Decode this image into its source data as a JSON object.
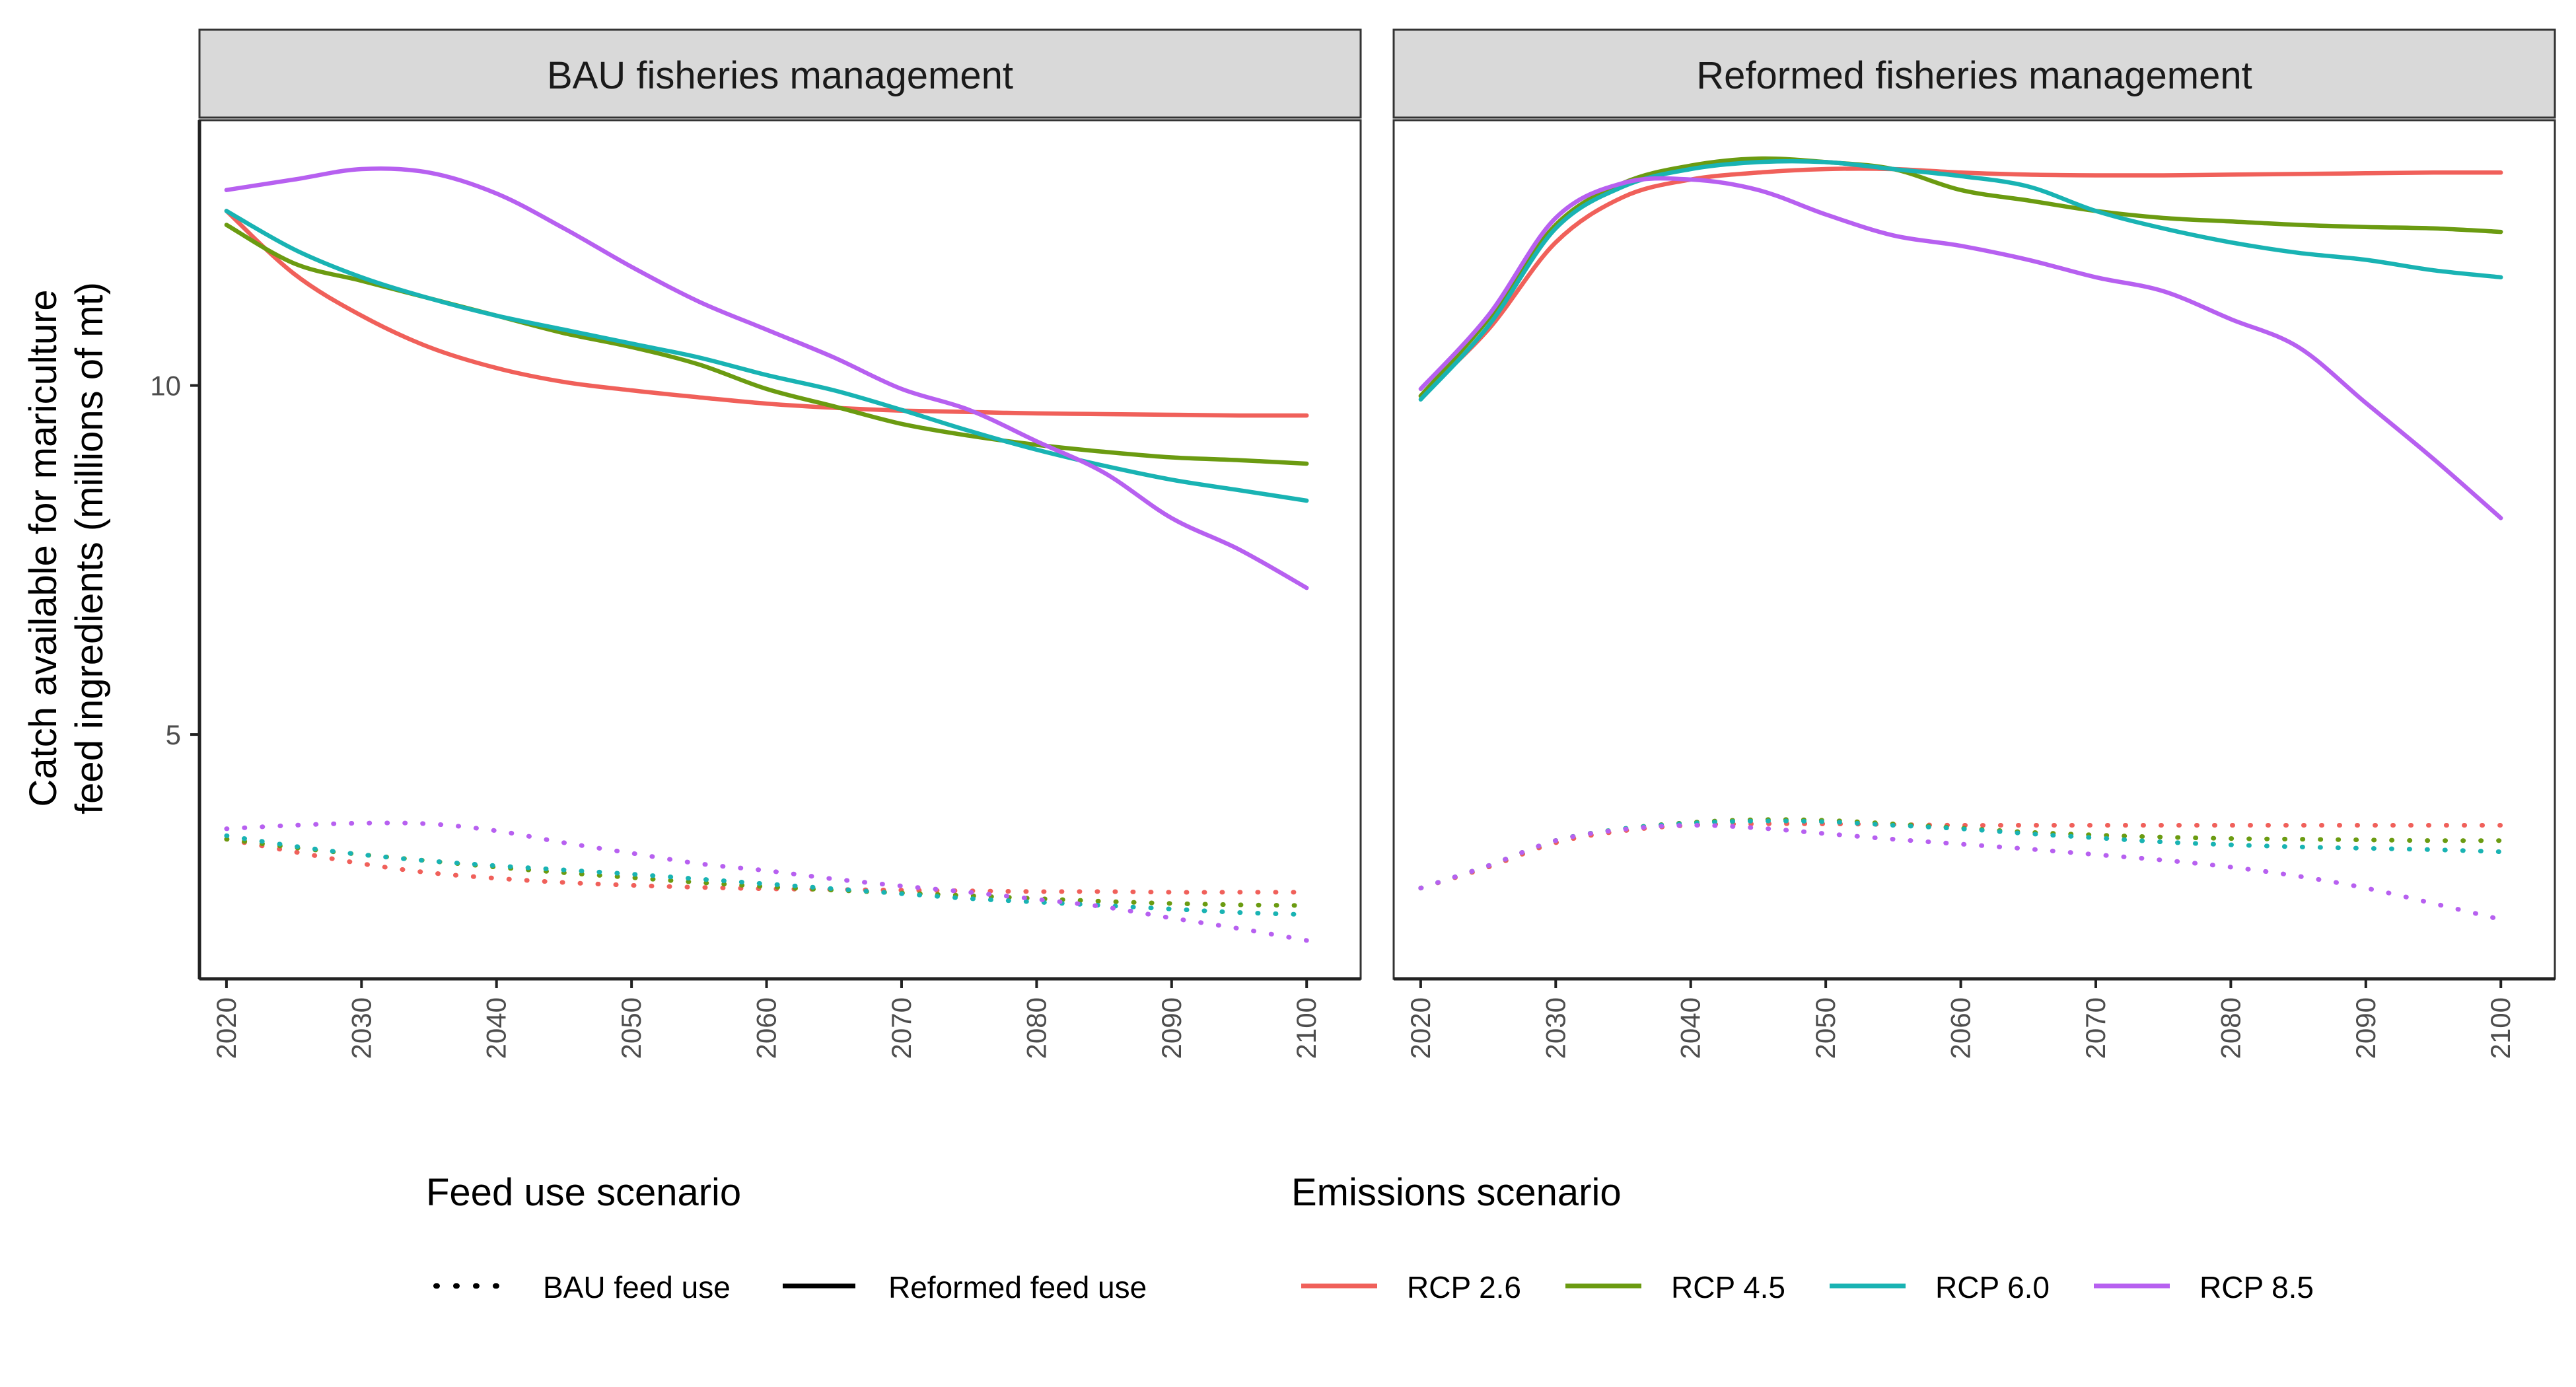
{
  "y_axis_label_line1": "Catch available for mariculture",
  "y_axis_label_line2": "feed ingredients (millions of mt)",
  "colors": {
    "RCP 2.6": "#F0605A",
    "RCP 4.5": "#6B9B11",
    "RCP 6.0": "#19B3B3",
    "RCP 8.5": "#B760F0",
    "strip_fill": "#D9D9D9",
    "axis": "#222222"
  },
  "legend": {
    "feed_title": "Feed use scenario",
    "feed_items": [
      {
        "label": "BAU feed use",
        "linetype": "dotted"
      },
      {
        "label": "Reformed feed use",
        "linetype": "solid"
      }
    ],
    "emissions_title": "Emissions scenario",
    "emissions_items": [
      "RCP 2.6",
      "RCP 4.5",
      "RCP 6.0",
      "RCP 8.5"
    ]
  },
  "chart_data": [
    {
      "type": "line",
      "title": "BAU fisheries management",
      "xlabel": "",
      "ylabel": "Catch available for mariculture feed ingredients (millions of mt)",
      "x": [
        2020,
        2025,
        2030,
        2035,
        2040,
        2045,
        2050,
        2055,
        2060,
        2065,
        2070,
        2075,
        2080,
        2085,
        2090,
        2095,
        2100
      ],
      "x_ticks": [
        2020,
        2030,
        2040,
        2050,
        2060,
        2070,
        2080,
        2090,
        2100
      ],
      "y_ticks": [
        5,
        10
      ],
      "xlim": [
        2018,
        2104
      ],
      "ylim": [
        1.5,
        13.8
      ],
      "series": [
        {
          "name": "RCP 2.6",
          "feed": "Reformed feed use",
          "values": [
            12.5,
            11.6,
            11.0,
            10.55,
            10.25,
            10.05,
            9.93,
            9.83,
            9.74,
            9.68,
            9.64,
            9.62,
            9.6,
            9.59,
            9.58,
            9.57,
            9.57
          ]
        },
        {
          "name": "RCP 4.5",
          "feed": "Reformed feed use",
          "values": [
            12.3,
            11.75,
            11.5,
            11.25,
            11.0,
            10.75,
            10.55,
            10.3,
            9.95,
            9.7,
            9.45,
            9.28,
            9.15,
            9.05,
            8.97,
            8.93,
            8.88
          ]
        },
        {
          "name": "RCP 6.0",
          "feed": "Reformed feed use",
          "values": [
            12.5,
            11.95,
            11.55,
            11.25,
            11.0,
            10.8,
            10.6,
            10.4,
            10.15,
            9.93,
            9.65,
            9.35,
            9.08,
            8.85,
            8.65,
            8.5,
            8.35
          ]
        },
        {
          "name": "RCP 8.5",
          "feed": "Reformed feed use",
          "values": [
            12.8,
            12.95,
            13.1,
            13.05,
            12.75,
            12.25,
            11.7,
            11.2,
            10.8,
            10.4,
            9.95,
            9.65,
            9.2,
            8.75,
            8.1,
            7.65,
            7.1
          ]
        },
        {
          "name": "RCP 2.6",
          "feed": "BAU feed use",
          "values": [
            3.5,
            3.32,
            3.15,
            3.02,
            2.94,
            2.88,
            2.84,
            2.81,
            2.79,
            2.78,
            2.77,
            2.76,
            2.75,
            2.75,
            2.74,
            2.74,
            2.74
          ]
        },
        {
          "name": "RCP 4.5",
          "feed": "BAU feed use",
          "values": [
            3.5,
            3.38,
            3.28,
            3.19,
            3.1,
            3.02,
            2.95,
            2.88,
            2.82,
            2.77,
            2.73,
            2.69,
            2.65,
            2.61,
            2.58,
            2.56,
            2.55
          ]
        },
        {
          "name": "RCP 6.0",
          "feed": "BAU feed use",
          "values": [
            3.55,
            3.4,
            3.28,
            3.19,
            3.12,
            3.06,
            3.0,
            2.93,
            2.86,
            2.79,
            2.72,
            2.65,
            2.6,
            2.55,
            2.5,
            2.45,
            2.42
          ]
        },
        {
          "name": "RCP 8.5",
          "feed": "BAU feed use",
          "values": [
            3.65,
            3.7,
            3.73,
            3.72,
            3.62,
            3.45,
            3.3,
            3.15,
            3.05,
            2.93,
            2.83,
            2.74,
            2.64,
            2.53,
            2.37,
            2.22,
            2.05
          ]
        }
      ]
    },
    {
      "type": "line",
      "title": "Reformed fisheries management",
      "xlabel": "",
      "ylabel": "",
      "x": [
        2020,
        2025,
        2030,
        2035,
        2040,
        2045,
        2050,
        2055,
        2060,
        2065,
        2070,
        2075,
        2080,
        2085,
        2090,
        2095,
        2100
      ],
      "x_ticks": [
        2020,
        2030,
        2040,
        2050,
        2060,
        2070,
        2080,
        2090,
        2100
      ],
      "y_ticks": [
        5,
        10
      ],
      "xlim": [
        2018,
        2104
      ],
      "ylim": [
        1.5,
        13.8
      ],
      "series": [
        {
          "name": "RCP 2.6",
          "feed": "Reformed feed use",
          "values": [
            9.85,
            10.8,
            12.05,
            12.7,
            12.95,
            13.05,
            13.1,
            13.1,
            13.05,
            13.02,
            13.01,
            13.01,
            13.02,
            13.03,
            13.04,
            13.05,
            13.05
          ]
        },
        {
          "name": "RCP 4.5",
          "feed": "Reformed feed use",
          "values": [
            9.85,
            10.95,
            12.3,
            12.9,
            13.15,
            13.25,
            13.2,
            13.1,
            12.8,
            12.65,
            12.5,
            12.4,
            12.35,
            12.3,
            12.27,
            12.25,
            12.2
          ]
        },
        {
          "name": "RCP 6.0",
          "feed": "Reformed feed use",
          "values": [
            9.8,
            10.85,
            12.25,
            12.85,
            13.1,
            13.2,
            13.2,
            13.1,
            13.0,
            12.85,
            12.5,
            12.25,
            12.05,
            11.9,
            11.8,
            11.65,
            11.55
          ]
        },
        {
          "name": "RCP 8.5",
          "feed": "Reformed feed use",
          "values": [
            9.95,
            11.0,
            12.4,
            12.9,
            12.95,
            12.8,
            12.45,
            12.15,
            12.0,
            11.8,
            11.55,
            11.35,
            10.95,
            10.55,
            9.75,
            8.95,
            8.1
          ]
        },
        {
          "name": "RCP 2.6",
          "feed": "BAU feed use",
          "values": [
            2.8,
            3.1,
            3.45,
            3.62,
            3.7,
            3.72,
            3.72,
            3.71,
            3.7,
            3.7,
            3.7,
            3.7,
            3.7,
            3.7,
            3.7,
            3.7,
            3.7
          ]
        },
        {
          "name": "RCP 4.5",
          "feed": "BAU feed use",
          "values": [
            2.8,
            3.12,
            3.48,
            3.65,
            3.74,
            3.78,
            3.77,
            3.72,
            3.66,
            3.6,
            3.56,
            3.53,
            3.51,
            3.5,
            3.49,
            3.48,
            3.48
          ]
        },
        {
          "name": "RCP 6.0",
          "feed": "BAU feed use",
          "values": [
            2.8,
            3.12,
            3.48,
            3.65,
            3.73,
            3.76,
            3.75,
            3.7,
            3.65,
            3.58,
            3.52,
            3.46,
            3.42,
            3.39,
            3.37,
            3.35,
            3.32
          ]
        },
        {
          "name": "RCP 8.5",
          "feed": "BAU feed use",
          "values": [
            2.8,
            3.12,
            3.48,
            3.64,
            3.7,
            3.66,
            3.58,
            3.5,
            3.43,
            3.36,
            3.28,
            3.2,
            3.1,
            2.97,
            2.8,
            2.58,
            2.35
          ]
        }
      ]
    }
  ]
}
